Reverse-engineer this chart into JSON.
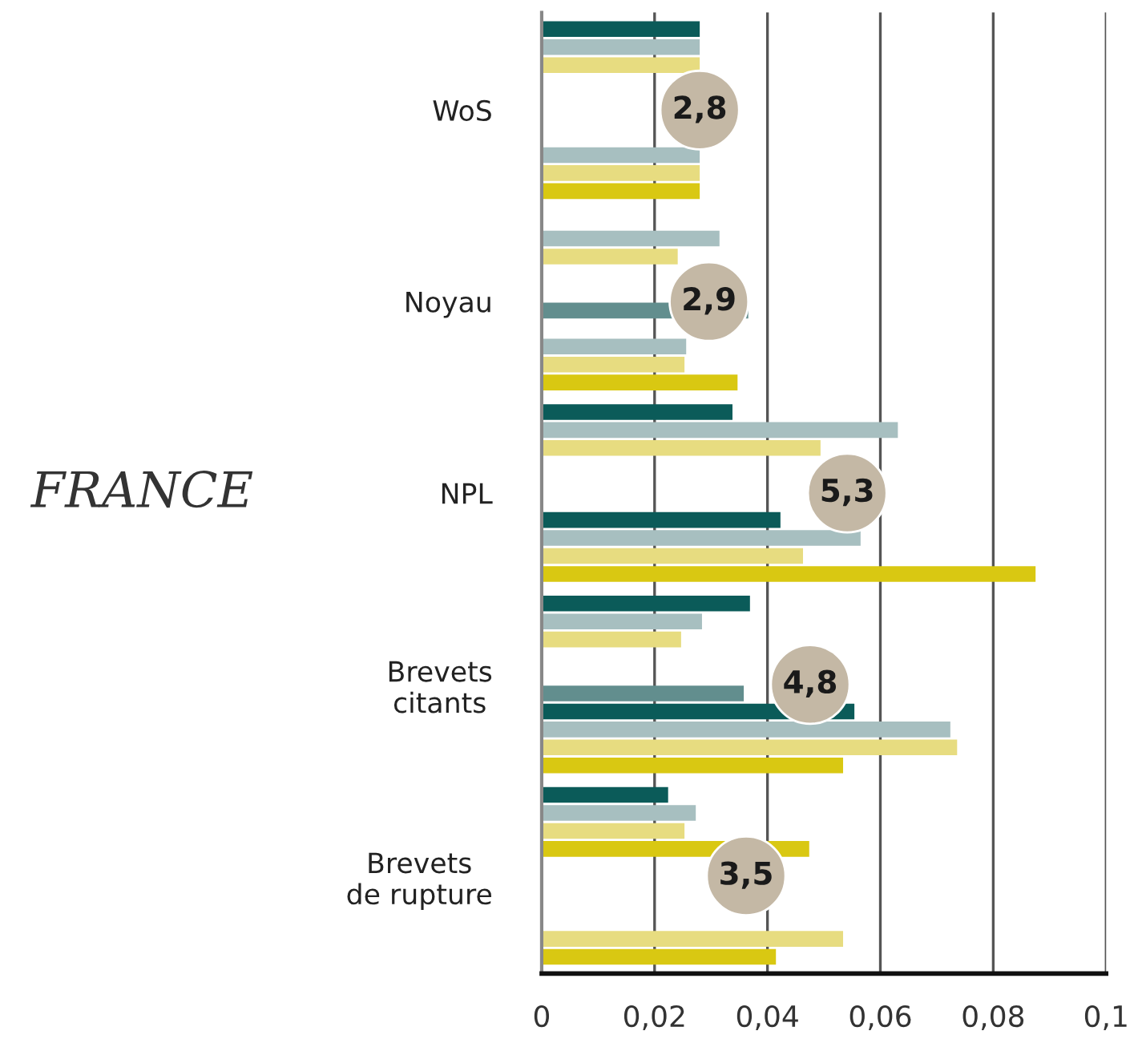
{
  "chart_data": {
    "type": "bar",
    "orientation": "horizontal",
    "categories": [
      "WoS",
      "Noyau",
      "NPL",
      "Brevets\ncitants",
      "Brevets\nde rupture"
    ],
    "series": [
      {
        "color": "#0b5b59",
        "values": [
          0.028,
          null,
          0.0338,
          0.0369,
          0.0224
        ]
      },
      {
        "color": "#a7bfc0",
        "values": [
          0.028,
          0.0315,
          0.0631,
          0.0284,
          0.0273
        ]
      },
      {
        "color": "#e7dc80",
        "values": [
          0.028,
          0.0241,
          0.0494,
          0.0247,
          0.0253
        ]
      },
      {
        "color": "#d9c812",
        "values": [
          null,
          null,
          null,
          null,
          0.0474
        ]
      },
      {
        "color": "#f3ecbc",
        "values": [
          null,
          null,
          null,
          null,
          null
        ]
      },
      {
        "color": "#628e8e",
        "values": [
          null,
          0.0366,
          null,
          0.0358,
          null
        ]
      },
      {
        "color": "#0b5b59",
        "values": [
          null,
          null,
          0.0423,
          0.0554,
          null
        ]
      },
      {
        "color": "#a7bfc0",
        "values": [
          0.028,
          0.0256,
          0.0565,
          0.0724,
          null
        ]
      },
      {
        "color": "#e7dc80",
        "values": [
          0.028,
          0.0253,
          0.0463,
          0.0736,
          0.0534
        ]
      },
      {
        "color": "#d9c812",
        "values": [
          0.028,
          0.0347,
          0.0875,
          0.0534,
          0.0415
        ]
      }
    ],
    "xlim": [
      0,
      0.1
    ],
    "xticks": [
      0,
      {
        "value": 0.02,
        "label": "0,02"
      },
      {
        "value": 0.04,
        "label": "0,04"
      },
      {
        "value": 0.06,
        "label": "0,06"
      },
      {
        "value": 0.08,
        "label": "0,08"
      },
      {
        "value": 0.1,
        "label": "0,1"
      }
    ],
    "grid": "x",
    "legend": false,
    "annotations": [
      "FRANCE",
      "2,8",
      "2,9",
      "5,3",
      "4,8",
      "3,5"
    ]
  }
}
